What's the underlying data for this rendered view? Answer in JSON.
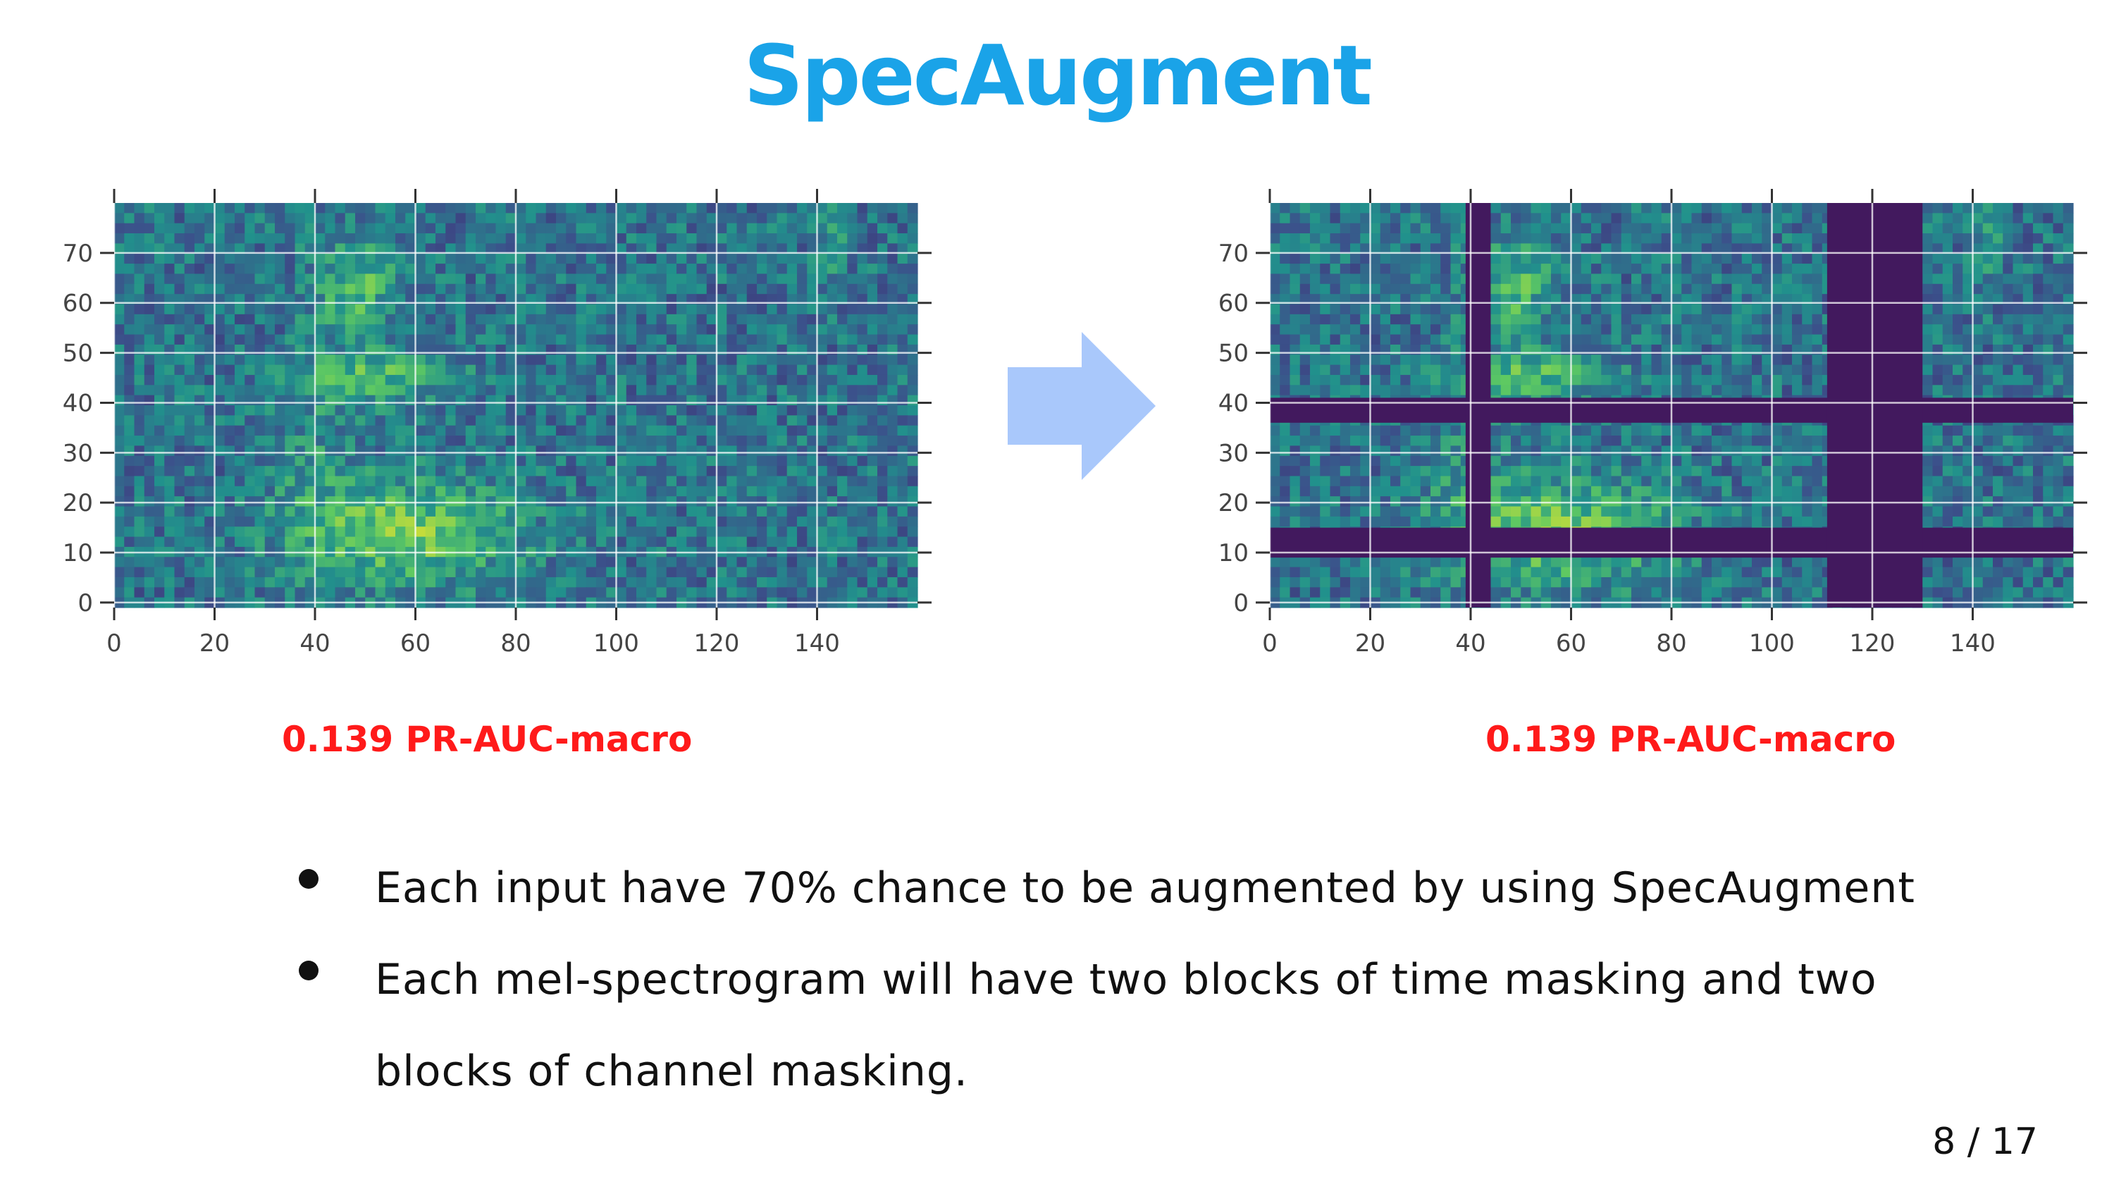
{
  "slide": {
    "title": "SpecAugment",
    "page_number": "8 / 17"
  },
  "spectrograms": {
    "x_ticks": [
      "0",
      "20",
      "40",
      "60",
      "80",
      "100",
      "120",
      "140"
    ],
    "y_ticks": [
      "0",
      "10",
      "20",
      "30",
      "40",
      "50",
      "60",
      "70"
    ],
    "x_range": [
      0,
      160
    ],
    "y_range": [
      -1,
      80
    ],
    "left": {
      "metric": "0.139 PR-AUC-macro"
    },
    "right": {
      "metric": "0.139 PR-AUC-macro",
      "time_masks": [
        [
          39,
          44
        ],
        [
          111,
          130
        ]
      ],
      "channel_masks": [
        [
          36,
          41
        ],
        [
          9,
          15
        ]
      ],
      "mask_color": "#42195e"
    }
  },
  "colors": {
    "title": "#1aa3e8",
    "metric": "#ff1a1a",
    "arrow": "#a9c8fb"
  },
  "bullets": [
    "Each input have 70% chance to be augmented by using SpecAugment",
    "Each mel-spectrogram will have two blocks of time masking and two blocks of channel masking."
  ]
}
